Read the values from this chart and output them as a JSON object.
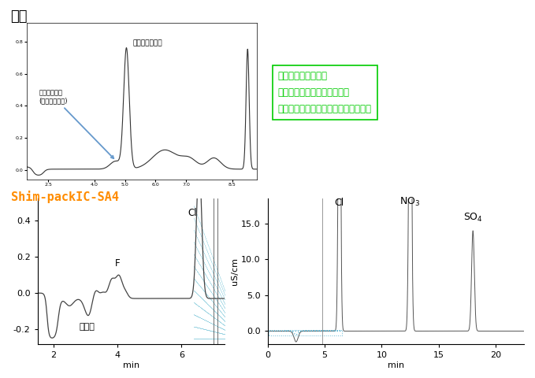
{
  "title_legacy": "従来",
  "subtitle_shimpack": "Shim-packIC-SA4",
  "subtitle_color": "#FF8C00",
  "box_text": "一般的な移動相では\nケイ酸イオンの溶出の一部と\nフッ化物イオンの溶出開始付近が重複",
  "box_color": "#00CC00",
  "annotation_keisan": "ケイ酸イオン\n(落ち込み部分)",
  "annotation_futu": "ふっ化物イオン",
  "annotation_arrow_color": "#6699CC",
  "bg_color": "#FFFFFF"
}
